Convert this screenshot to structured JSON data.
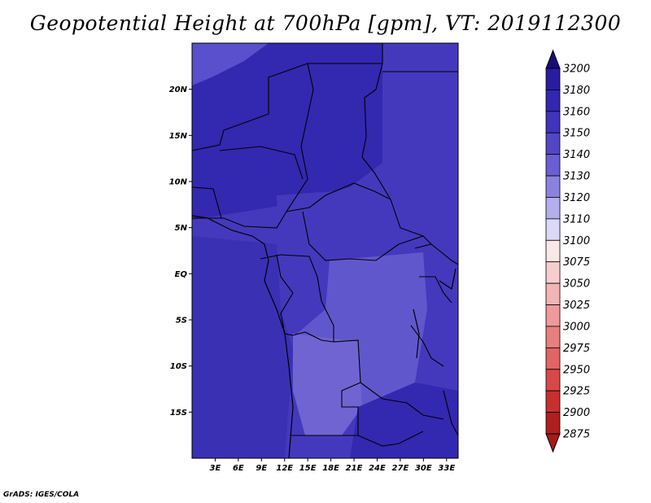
{
  "title": "Geopotential Height at 700hPa [gpm], VT: 2019112300",
  "credit": "GrADS: IGES/COLA",
  "lat_ticks": [
    {
      "label": "20N",
      "value": 20
    },
    {
      "label": "15N",
      "value": 15
    },
    {
      "label": "10N",
      "value": 10
    },
    {
      "label": "5N",
      "value": 5
    },
    {
      "label": "EQ",
      "value": 0
    },
    {
      "label": "5S",
      "value": -5
    },
    {
      "label": "10S",
      "value": -10
    },
    {
      "label": "15S",
      "value": -15
    }
  ],
  "lon_ticks": [
    {
      "label": "3E",
      "value": 3
    },
    {
      "label": "6E",
      "value": 6
    },
    {
      "label": "9E",
      "value": 9
    },
    {
      "label": "12E",
      "value": 12
    },
    {
      "label": "15E",
      "value": 15
    },
    {
      "label": "18E",
      "value": 18
    },
    {
      "label": "21E",
      "value": 21
    },
    {
      "label": "24E",
      "value": 24
    },
    {
      "label": "27E",
      "value": 27
    },
    {
      "label": "30E",
      "value": 30
    },
    {
      "label": "33E",
      "value": 33
    }
  ],
  "extent": {
    "lon_min": 0,
    "lon_max": 34.5,
    "lat_min": -20,
    "lat_max": 25
  },
  "colorbar": {
    "levels": [
      {
        "label": "3200",
        "color": "#1e0e8c"
      },
      {
        "label": "3180",
        "color": "#2a1ca0"
      },
      {
        "label": "3160",
        "color": "#3326b0"
      },
      {
        "label": "3150",
        "color": "#3f34bb"
      },
      {
        "label": "3140",
        "color": "#5246c6"
      },
      {
        "label": "3130",
        "color": "#6a5ed2"
      },
      {
        "label": "3120",
        "color": "#8b82e0"
      },
      {
        "label": "3110",
        "color": "#b4aeee"
      },
      {
        "label": "3100",
        "color": "#dcd8f8"
      },
      {
        "label": "3075",
        "color": "#fbe7e7"
      },
      {
        "label": "3050",
        "color": "#f7cece"
      },
      {
        "label": "3025",
        "color": "#f3b4b4"
      },
      {
        "label": "3000",
        "color": "#ee9a9a"
      },
      {
        "label": "2975",
        "color": "#e87f7f"
      },
      {
        "label": "2950",
        "color": "#e26464"
      },
      {
        "label": "2925",
        "color": "#d84848"
      },
      {
        "label": "2900",
        "color": "#c83030"
      },
      {
        "label": "2875",
        "color": "#b01e1e"
      }
    ],
    "top_cap_color": "#190c7a",
    "bottom_cap_color": "#a51a1a"
  },
  "field_colors": {
    "north_deep": "#2e22a8",
    "north": "#3328b0",
    "central": "#4439bd",
    "south_shallow": "#6157cc",
    "south_light": "#7064d2",
    "ocean": "#3a30b4",
    "nw_light": "#5a4fcc"
  }
}
